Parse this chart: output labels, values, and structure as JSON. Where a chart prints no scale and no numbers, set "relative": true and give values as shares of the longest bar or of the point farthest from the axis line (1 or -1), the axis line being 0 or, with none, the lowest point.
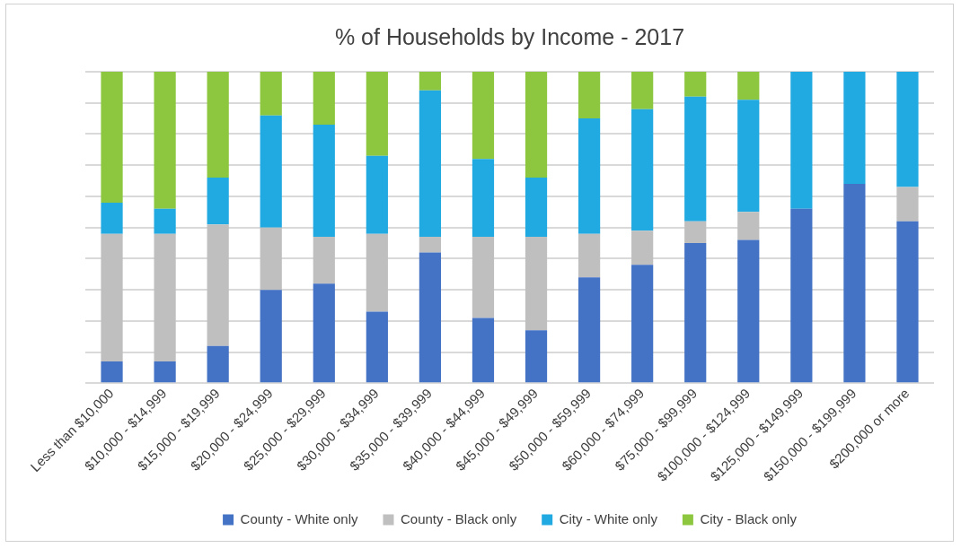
{
  "chart_data": {
    "type": "bar",
    "title": "% of Households by Income - 2017",
    "relative": true,
    "stacked": true,
    "grid": "y",
    "legend": "bottom",
    "categories": [
      "Less than $10,000",
      "$10,000 - $14,999",
      "$15,000 - $19,999",
      "$20,000 - $24,999",
      "$25,000 - $29,999",
      "$30,000 - $34,999",
      "$35,000 - $39,999",
      "$40,000 - $44,999",
      "$45,000 - $49,999",
      "$50,000 - $59,999",
      "$60,000 - $74,999",
      "$75,000 - $99,999",
      "$100,000 - $124,999",
      "$125,000 - $149,999",
      "$150,000 - $199,999",
      "$200,000 or more"
    ],
    "series": [
      {
        "name": "County - White only",
        "color": "#4472c4",
        "values": [
          0.07,
          0.07,
          0.12,
          0.3,
          0.32,
          0.23,
          0.42,
          0.21,
          0.17,
          0.34,
          0.38,
          0.45,
          0.46,
          0.56,
          0.64,
          0.52
        ]
      },
      {
        "name": "County - Black only",
        "color": "#bfbfbf",
        "values": [
          0.41,
          0.41,
          0.39,
          0.2,
          0.15,
          0.25,
          0.05,
          0.26,
          0.3,
          0.14,
          0.11,
          0.07,
          0.09,
          0,
          0,
          0.11
        ]
      },
      {
        "name": "City - White only",
        "color": "#21a9e1",
        "values": [
          0.1,
          0.08,
          0.15,
          0.36,
          0.36,
          0.25,
          0.47,
          0.25,
          0.19,
          0.37,
          0.39,
          0.4,
          0.36,
          0.44,
          0.36,
          0.37
        ]
      },
      {
        "name": "City - Black only",
        "color": "#8dc63f",
        "values": [
          0.42,
          0.44,
          0.34,
          0.14,
          0.17,
          0.27,
          0.06,
          0.28,
          0.34,
          0.15,
          0.12,
          0.08,
          0.09,
          0,
          0,
          0
        ]
      }
    ]
  }
}
